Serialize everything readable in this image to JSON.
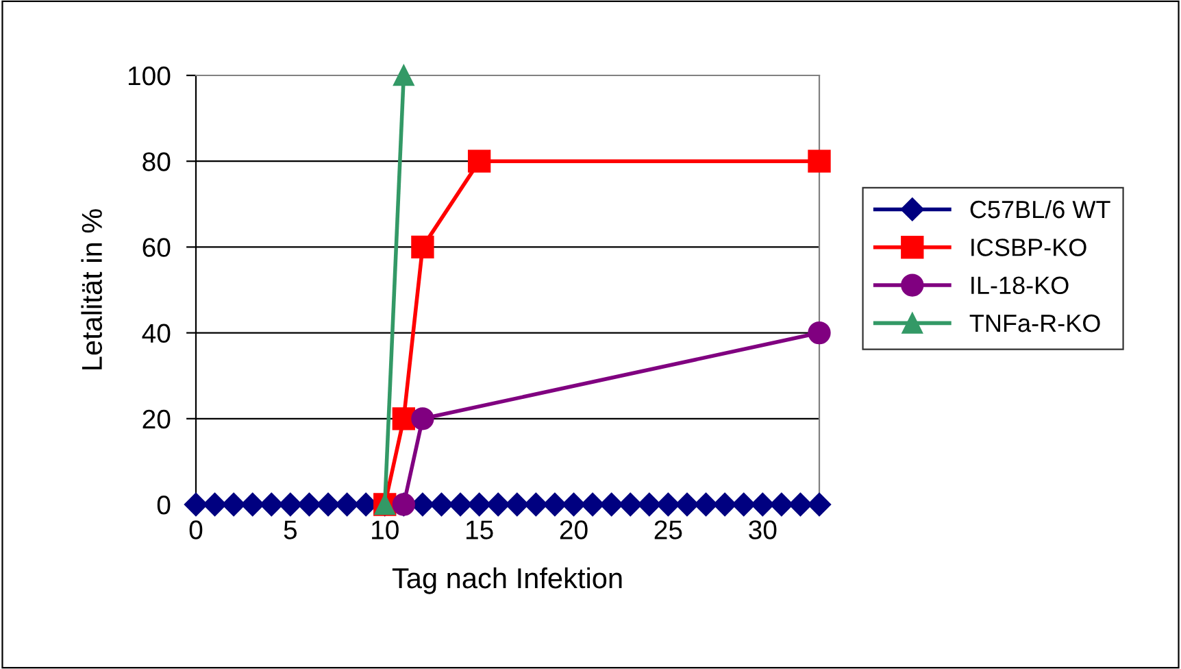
{
  "chart_data": {
    "type": "line",
    "xlabel": "Tag nach Infektion",
    "ylabel": "Letalität in %",
    "xlim": [
      0,
      33
    ],
    "xticks": [
      0,
      5,
      10,
      15,
      20,
      25,
      30
    ],
    "ylim": [
      0,
      100
    ],
    "yticks": [
      0,
      20,
      40,
      60,
      80,
      100
    ],
    "grid": "y",
    "legend": "right",
    "series": [
      {
        "name": "C57BL/6 WT",
        "color": "#000080",
        "marker": "diamond",
        "x": [
          0,
          1,
          2,
          3,
          4,
          5,
          6,
          7,
          8,
          9,
          10,
          11,
          12,
          13,
          14,
          15,
          16,
          17,
          18,
          19,
          20,
          21,
          22,
          23,
          24,
          25,
          26,
          27,
          28,
          29,
          30,
          31,
          32,
          33
        ],
        "values": [
          0,
          0,
          0,
          0,
          0,
          0,
          0,
          0,
          0,
          0,
          0,
          0,
          0,
          0,
          0,
          0,
          0,
          0,
          0,
          0,
          0,
          0,
          0,
          0,
          0,
          0,
          0,
          0,
          0,
          0,
          0,
          0,
          0,
          0
        ]
      },
      {
        "name": "ICSBP-KO",
        "color": "#ff0000",
        "marker": "square",
        "x": [
          10,
          11,
          12,
          15,
          33
        ],
        "values": [
          0,
          20,
          60,
          80,
          80
        ]
      },
      {
        "name": "IL-18-KO",
        "color": "#800080",
        "marker": "circle",
        "x": [
          11,
          12,
          33
        ],
        "values": [
          0,
          20,
          40
        ]
      },
      {
        "name": "TNFa-R-KO",
        "color": "#339966",
        "marker": "triangle",
        "x": [
          10,
          11
        ],
        "values": [
          0,
          100
        ]
      }
    ]
  }
}
